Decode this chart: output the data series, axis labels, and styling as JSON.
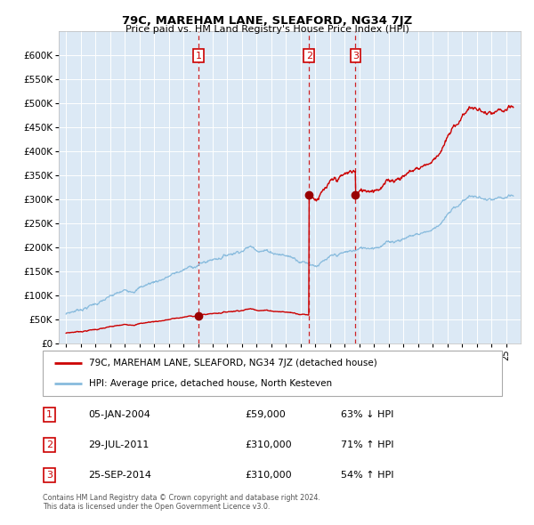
{
  "title": "79C, MAREHAM LANE, SLEAFORD, NG34 7JZ",
  "subtitle": "Price paid vs. HM Land Registry's House Price Index (HPI)",
  "bg_color": "#dce9f5",
  "hpi_line_color": "#88bbdd",
  "price_line_color": "#cc0000",
  "sale_marker_color": "#990000",
  "vline_color": "#cc0000",
  "ylim": [
    0,
    650000
  ],
  "yticks": [
    0,
    50000,
    100000,
    150000,
    200000,
    250000,
    300000,
    350000,
    400000,
    450000,
    500000,
    550000,
    600000
  ],
  "sales": [
    {
      "label": "1",
      "date_num": 2004.03,
      "price": 59000
    },
    {
      "label": "2",
      "date_num": 2011.57,
      "price": 310000
    },
    {
      "label": "3",
      "date_num": 2014.73,
      "price": 310000
    }
  ],
  "legend_entries": [
    "79C, MAREHAM LANE, SLEAFORD, NG34 7JZ (detached house)",
    "HPI: Average price, detached house, North Kesteven"
  ],
  "table_rows": [
    {
      "num": "1",
      "date": "05-JAN-2004",
      "price": "£59,000",
      "pct": "63% ↓ HPI"
    },
    {
      "num": "2",
      "date": "29-JUL-2011",
      "price": "£310,000",
      "pct": "71% ↑ HPI"
    },
    {
      "num": "3",
      "date": "25-SEP-2014",
      "price": "£310,000",
      "pct": "54% ↑ HPI"
    }
  ],
  "footer": "Contains HM Land Registry data © Crown copyright and database right 2024.\nThis data is licensed under the Open Government Licence v3.0."
}
